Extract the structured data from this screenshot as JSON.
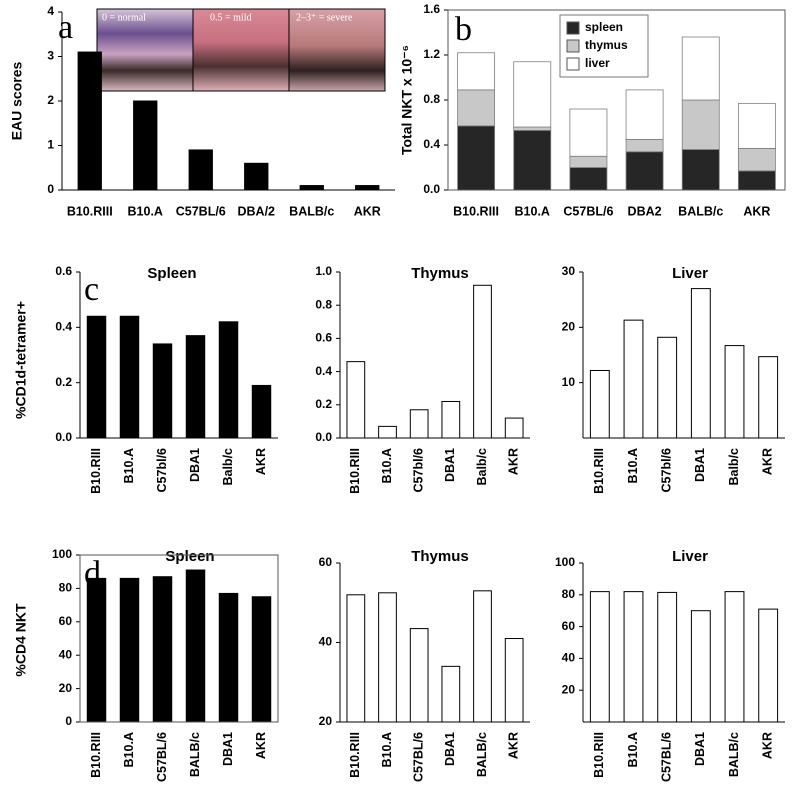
{
  "chart_data": [
    {
      "type": "bar",
      "panel": "a",
      "y_label": "EAU scores",
      "image_labels": [
        "0 = normal",
        "0.5 = mild",
        "2–3⁺ = severe"
      ],
      "categories": [
        "B10.RIII",
        "B10.A",
        "C57BL/6",
        "DBA/2",
        "BALB/c",
        "AKR"
      ],
      "values": [
        3.1,
        2.0,
        0.9,
        0.6,
        0.1,
        0.1
      ],
      "color": "#000000",
      "edgecolor": "#000000",
      "ylim": [
        0,
        4
      ],
      "yticks": [
        0,
        1,
        2,
        3,
        4
      ]
    },
    {
      "type": "stacked_bar",
      "panel": "b",
      "y_label": "Total NKT x 10⁻⁶",
      "categories": [
        "B10.RIII",
        "B10.A",
        "C57BL/6",
        "DBA2",
        "BALB/c",
        "AKR"
      ],
      "series": [
        {
          "name": "spleen",
          "color": "#262626",
          "values": [
            0.57,
            0.53,
            0.2,
            0.34,
            0.36,
            0.17
          ]
        },
        {
          "name": "thymus",
          "color": "#c8c8c8",
          "values": [
            0.32,
            0.03,
            0.1,
            0.11,
            0.44,
            0.2
          ]
        },
        {
          "name": "liver",
          "color": "#ffffff",
          "values": [
            0.33,
            0.58,
            0.42,
            0.44,
            0.56,
            0.4
          ]
        }
      ],
      "edgecolor": "#7f7f7f",
      "legend": "upper right",
      "frame": true,
      "ylim": [
        0,
        1.6
      ],
      "yticks": [
        {
          "value": 0,
          "label": "0.0"
        },
        0.4,
        0.8,
        1.2,
        1.6
      ]
    },
    {
      "type": "bar",
      "panel": "c",
      "title": "Spleen",
      "y_label": "%CD1d-tetramer+",
      "categories": [
        "B10.RIII",
        "B10.A",
        "C57bl/6",
        "DBA1",
        "Balb/c",
        "AKR"
      ],
      "values": [
        0.44,
        0.44,
        0.34,
        0.37,
        0.42,
        0.19
      ],
      "color": "#000000",
      "edgecolor": "#000000",
      "ylim": [
        0,
        0.6
      ],
      "yticks": [
        {
          "value": 0,
          "label": "0.0"
        },
        0.2,
        0.4,
        0.6
      ]
    },
    {
      "type": "bar",
      "title": "Thymus",
      "categories": [
        "B10.RIII",
        "B10.A",
        "C57bl/6",
        "DBA1",
        "Balb/c",
        "AKR"
      ],
      "values": [
        0.46,
        0.07,
        0.17,
        0.22,
        0.92,
        0.12
      ],
      "color": "#ffffff",
      "edgecolor": "#000000",
      "ylim": [
        0,
        1.0
      ],
      "yticks": [
        {
          "value": 0,
          "label": "0.0"
        },
        0.2,
        0.4,
        0.6,
        0.8,
        {
          "value": 1,
          "label": "1.0"
        }
      ]
    },
    {
      "type": "bar",
      "title": "Liver",
      "categories": [
        "B10.RIII",
        "B10.A",
        "C57bl/6",
        "DBA1",
        "Balb/c",
        "AKR"
      ],
      "values": [
        12.2,
        21.3,
        18.2,
        27,
        16.7,
        14.7
      ],
      "color": "#ffffff",
      "edgecolor": "#000000",
      "ylim": [
        0,
        30
      ],
      "yticks": [
        10,
        20,
        30
      ]
    },
    {
      "type": "bar",
      "panel": "d",
      "title": "Spleen",
      "y_label": "%CD4 NKT",
      "categories": [
        "B10.RIII",
        "B10.A",
        "C57BL/6",
        "BALB/c",
        "DBA1",
        "AKR"
      ],
      "values": [
        86,
        86,
        87,
        91,
        77,
        75
      ],
      "color": "#000000",
      "edgecolor": "#000000",
      "frame": true,
      "ylim": [
        0,
        100
      ],
      "yticks": [
        0,
        20,
        40,
        60,
        80,
        100
      ]
    },
    {
      "type": "bar",
      "title": "Thymus",
      "categories": [
        "B10.RIII",
        "B10.A",
        "C57BL/6",
        "DBA1",
        "BALB/c",
        "AKR"
      ],
      "values": [
        52,
        52.5,
        43.5,
        34,
        53,
        41
      ],
      "color": "#ffffff",
      "edgecolor": "#000000",
      "ylim": [
        20,
        60
      ],
      "yticks": [
        20,
        40,
        60
      ]
    },
    {
      "type": "bar",
      "title": "Liver",
      "categories": [
        "B10.RIII",
        "B10.A",
        "C57BL/6",
        "DBA1",
        "BALB/c",
        "AKR"
      ],
      "values": [
        82,
        82,
        81.5,
        70,
        82,
        71
      ],
      "color": "#ffffff",
      "edgecolor": "#000000",
      "ylim": [
        0,
        100
      ],
      "yticks": [
        20,
        40,
        60,
        80,
        100
      ]
    }
  ]
}
